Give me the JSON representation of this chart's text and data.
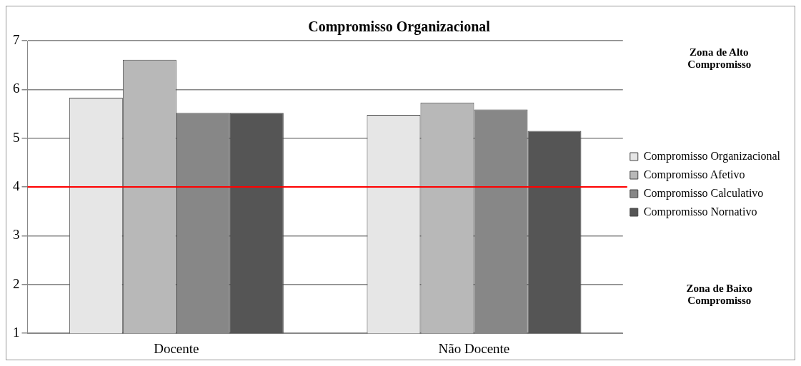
{
  "chart_data": {
    "type": "bar",
    "title": "Compromisso Organizacional",
    "categories": [
      "Docente",
      "Não Docente"
    ],
    "series": [
      {
        "name": "Compromisso Organizacional",
        "color": "#e6e6e6",
        "values": [
          5.83,
          5.48
        ]
      },
      {
        "name": "Compromisso Afetivo",
        "color": "#b8b8b8",
        "values": [
          6.61,
          5.73
        ]
      },
      {
        "name": "Compromisso Calculativo",
        "color": "#878787",
        "values": [
          5.52,
          5.59
        ]
      },
      {
        "name": "Compromisso Nornativo",
        "color": "#555555",
        "values": [
          5.52,
          5.15
        ]
      }
    ],
    "ylim": [
      1,
      7
    ],
    "yticks": [
      1,
      2,
      3,
      4,
      5,
      6,
      7
    ],
    "grid": "y",
    "legend": "right",
    "ref_lines": [
      {
        "axis": "y",
        "value": 4,
        "color": "#ff0000"
      }
    ],
    "annotations": [
      "Zona de Alto Compromisso",
      "Zona de Baixo Compromisso"
    ]
  }
}
